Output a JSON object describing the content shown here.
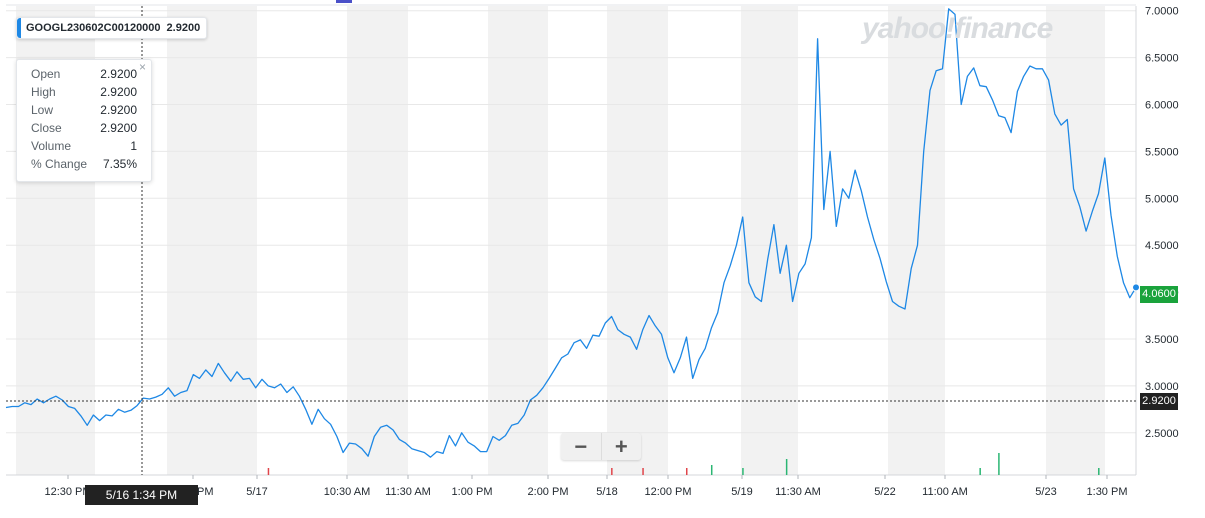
{
  "legend": {
    "symbol": "GOOGL230602C00120000",
    "price": "2.9200"
  },
  "tooltip": {
    "close_symbol": "×",
    "rows": [
      {
        "label": "Open",
        "value": "2.9200"
      },
      {
        "label": "High",
        "value": "2.9200"
      },
      {
        "label": "Low",
        "value": "2.9200"
      },
      {
        "label": "Close",
        "value": "2.9200"
      },
      {
        "label": "Volume",
        "value": "1"
      },
      {
        "label": "% Change",
        "value": "7.35%"
      }
    ]
  },
  "crosshair": {
    "time_label": "5/16 1:34 PM",
    "price_label": "2.9200"
  },
  "last_price": {
    "label": "4.0600",
    "color": "#1aa33c"
  },
  "zoom": {
    "minus": "−",
    "plus": "+"
  },
  "brand": {
    "text": "yahoo!finance"
  },
  "colors": {
    "line": "#1e88e5",
    "shade": "#f2f2f2",
    "grid": "#e8e8e8",
    "volume_up": "#2bb673",
    "volume_down": "#e0454b"
  },
  "chart_data": {
    "type": "line",
    "title": "",
    "xlabel": "",
    "ylabel": "",
    "ylim": [
      2.05,
      7.05
    ],
    "y_ticks": [
      "2.5000",
      "3.0000",
      "3.5000",
      "4.0000",
      "4.5000",
      "5.0000",
      "5.5000",
      "6.0000",
      "6.5000",
      "7.0000"
    ],
    "x_tick_labels": [
      "12:30 PM",
      "1:30 PM",
      "5/17",
      "10:30 AM",
      "11:30 AM",
      "1:00 PM",
      "2:00 PM",
      "5/18",
      "12:00 PM",
      "5/19",
      "11:30 AM",
      "5/22",
      "11:00 AM",
      "5/23",
      "1:30 PM"
    ],
    "grid": true,
    "series": [
      {
        "values": [
          2.77,
          2.78,
          2.78,
          2.82,
          2.8,
          2.86,
          2.82,
          2.86,
          2.89,
          2.85,
          2.78,
          2.76,
          2.68,
          2.58,
          2.69,
          2.63,
          2.69,
          2.68,
          2.75,
          2.72,
          2.74,
          2.79,
          2.87,
          2.86,
          2.88,
          2.91,
          2.98,
          2.89,
          2.93,
          2.95,
          3.12,
          3.08,
          3.17,
          3.1,
          3.24,
          3.14,
          3.05,
          3.15,
          3.07,
          3.08,
          2.98,
          3.07,
          3.0,
          2.98,
          3.02,
          2.93,
          2.99,
          2.89,
          2.75,
          2.59,
          2.75,
          2.65,
          2.59,
          2.46,
          2.29,
          2.39,
          2.38,
          2.33,
          2.25,
          2.46,
          2.56,
          2.58,
          2.53,
          2.43,
          2.39,
          2.33,
          2.31,
          2.29,
          2.24,
          2.3,
          2.28,
          2.47,
          2.36,
          2.5,
          2.4,
          2.36,
          2.3,
          2.3,
          2.46,
          2.42,
          2.47,
          2.58,
          2.6,
          2.69,
          2.85,
          2.9,
          2.98,
          3.08,
          3.19,
          3.3,
          3.34,
          3.46,
          3.49,
          3.4,
          3.54,
          3.53,
          3.67,
          3.74,
          3.6,
          3.55,
          3.52,
          3.39,
          3.6,
          3.75,
          3.64,
          3.55,
          3.3,
          3.14,
          3.3,
          3.52,
          3.08,
          3.28,
          3.4,
          3.62,
          3.78,
          4.1,
          4.28,
          4.5,
          4.8,
          4.1,
          3.95,
          3.9,
          4.35,
          4.72,
          4.2,
          4.5,
          3.9,
          4.2,
          4.3,
          4.58,
          6.7,
          4.88,
          5.5,
          4.7,
          5.1,
          5.0,
          5.3,
          5.08,
          4.8,
          4.56,
          4.36,
          4.11,
          3.9,
          3.85,
          3.82,
          4.25,
          4.5,
          5.5,
          6.15,
          6.36,
          6.38,
          7.02,
          6.96,
          6.0,
          6.3,
          6.39,
          6.2,
          6.19,
          6.05,
          5.88,
          5.86,
          5.7,
          6.14,
          6.3,
          6.41,
          6.38,
          6.38,
          6.26,
          5.9,
          5.78,
          5.84,
          5.1,
          4.91,
          4.65,
          4.86,
          5.05,
          5.43,
          4.82,
          4.38,
          4.1,
          3.94,
          4.05
        ]
      }
    ],
    "volume": [
      {
        "t_index": 42,
        "value": 1,
        "dir": "down"
      },
      {
        "t_index": 97,
        "value": 1,
        "dir": "down"
      },
      {
        "t_index": 102,
        "value": 1,
        "dir": "down"
      },
      {
        "t_index": 109,
        "value": 1,
        "dir": "down"
      },
      {
        "t_index": 113,
        "value": 2,
        "dir": "up"
      },
      {
        "t_index": 118,
        "value": 1,
        "dir": "up"
      },
      {
        "t_index": 125,
        "value": 4,
        "dir": "up"
      },
      {
        "t_index": 156,
        "value": 1,
        "dir": "up"
      },
      {
        "t_index": 159,
        "value": 6,
        "dir": "up"
      },
      {
        "t_index": 175,
        "value": 1,
        "dir": "up"
      },
      {
        "t_index": 210,
        "value": 2,
        "dir": "up"
      },
      {
        "t_index": 215,
        "value": 1,
        "dir": "down"
      },
      {
        "t_index": 220,
        "value": 1,
        "dir": "down"
      },
      {
        "t_index": 231,
        "value": 1,
        "dir": "up"
      }
    ]
  }
}
